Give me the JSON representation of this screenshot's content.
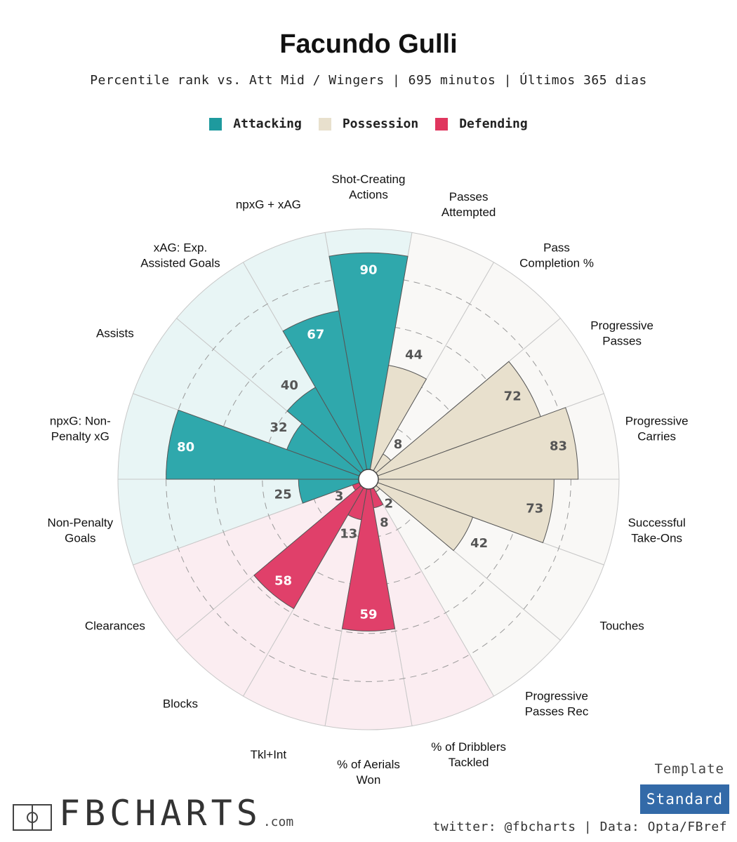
{
  "title": "Facundo Gulli",
  "subtitle": "Percentile rank vs. Att Mid / Wingers | 695 minutos | Últimos 365 dias",
  "legend": [
    {
      "label": "Attacking",
      "color": "#1e9a9e"
    },
    {
      "label": "Possession",
      "color": "#e8e0cd"
    },
    {
      "label": "Defending",
      "color": "#e0365e"
    }
  ],
  "colors": {
    "attacking": "#2fa8ac",
    "possession": "#e8e0cd",
    "defending": "#e0406a",
    "attacking_bg": "#e8f5f5",
    "possession_bg": "#f9f8f6",
    "defending_bg": "#fbedf1",
    "outline": "#c8c8c8"
  },
  "chart_data": {
    "type": "polar-bar",
    "title": "Facundo Gulli",
    "rmax": 100,
    "rings": [
      20,
      40,
      60,
      80
    ],
    "categories": [
      {
        "name": "Shot-Creating\nActions",
        "value": 90,
        "group": "attacking"
      },
      {
        "name": "Passes\nAttempted",
        "value": 44,
        "group": "possession"
      },
      {
        "name": "Pass\nCompletion %",
        "value": 8,
        "group": "possession"
      },
      {
        "name": "Progressive\nPasses",
        "value": 72,
        "group": "possession"
      },
      {
        "name": "Progressive\nCarries",
        "value": 83,
        "group": "possession"
      },
      {
        "name": "Successful\nTake-Ons",
        "value": 73,
        "group": "possession"
      },
      {
        "name": "Touches",
        "value": 42,
        "group": "possession"
      },
      {
        "name": "Progressive\nPasses Rec",
        "value": 2,
        "group": "possession"
      },
      {
        "name": "% of Dribblers\nTackled",
        "value": 8,
        "group": "defending"
      },
      {
        "name": "% of Aerials\nWon",
        "value": 59,
        "group": "defending"
      },
      {
        "name": "Tkl+Int",
        "value": 13,
        "group": "defending"
      },
      {
        "name": "Blocks",
        "value": 58,
        "group": "defending"
      },
      {
        "name": "Clearances",
        "value": 3,
        "group": "defending"
      },
      {
        "name": "Non-Penalty\nGoals",
        "value": 25,
        "group": "attacking"
      },
      {
        "name": "npxG: Non-\nPenalty xG",
        "value": 80,
        "group": "attacking"
      },
      {
        "name": "Assists",
        "value": 32,
        "group": "attacking"
      },
      {
        "name": "xAG: Exp.\nAssisted Goals",
        "value": 40,
        "group": "attacking"
      },
      {
        "name": "npxG + xAG",
        "value": 67,
        "group": "attacking"
      }
    ]
  },
  "branding": {
    "logo_text": "FBCHARTS",
    "logo_suffix": ".com",
    "template_label": "Template",
    "template_value": "Standard",
    "footer": "twitter: @fbcharts | Data: Opta/FBref"
  }
}
